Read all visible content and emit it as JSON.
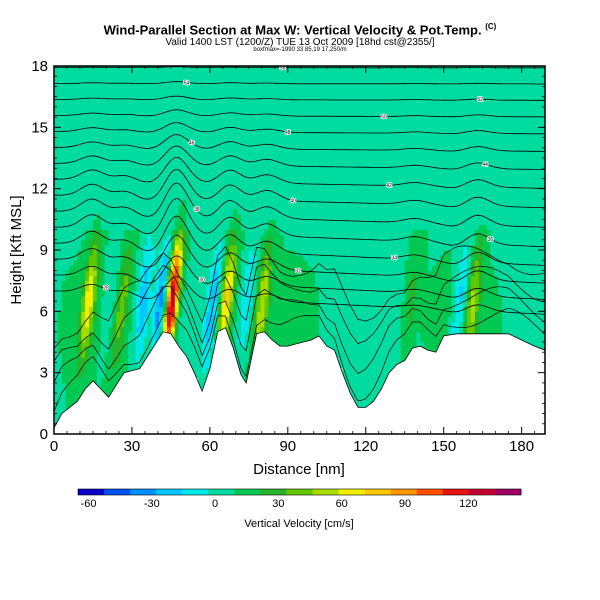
{
  "chart_data": {
    "type": "heatmap",
    "title": "Wind-Parallel Section at Max W: Vertical Velocity & Pot.Temp.",
    "title_mark": "(C)",
    "subtitle": "Valid 1400 LST (1200/Z) TUE 13 Oct 2009 [18hd cst@2355/]",
    "subsubtitle": "boxfmax=-1990 33 85,19 17,250/m",
    "xlabel": "Distance [nm]",
    "ylabel": "Height [Kft MSL]",
    "xlim": [
      0,
      189
    ],
    "ylim": [
      0,
      18
    ],
    "xticks": [
      0,
      30,
      60,
      90,
      120,
      150,
      180
    ],
    "yticks": [
      0,
      3,
      6,
      9,
      12,
      15,
      18
    ],
    "colorbar": {
      "label": "Vertical Velocity [cm/s]",
      "ticks": [
        -60,
        -30,
        0,
        30,
        60,
        90,
        120
      ],
      "range": [
        -65,
        145
      ],
      "colors": [
        "#0a00c8",
        "#0050f0",
        "#0090ff",
        "#00c8ff",
        "#00e8e8",
        "#00dca0",
        "#00c850",
        "#28b428",
        "#64c800",
        "#a8dc00",
        "#f0f000",
        "#ffc800",
        "#ff9600",
        "#ff5000",
        "#e61414",
        "#c80032",
        "#a00064"
      ]
    },
    "terrain": [
      [
        0,
        0.3
      ],
      [
        3,
        1
      ],
      [
        6,
        1.3
      ],
      [
        9,
        1.6
      ],
      [
        12,
        2.2
      ],
      [
        15,
        2.6
      ],
      [
        18,
        2.2
      ],
      [
        21,
        1.8
      ],
      [
        24,
        2.4
      ],
      [
        27,
        3.0
      ],
      [
        30,
        3.1
      ],
      [
        33,
        3.2
      ],
      [
        36,
        3.8
      ],
      [
        39,
        4.4
      ],
      [
        42,
        5.0
      ],
      [
        45,
        4.9
      ],
      [
        48,
        4.3
      ],
      [
        51,
        3.8
      ],
      [
        54,
        3.0
      ],
      [
        57,
        2.1
      ],
      [
        60,
        3.2
      ],
      [
        63,
        5.0
      ],
      [
        66,
        5.2
      ],
      [
        69,
        4.2
      ],
      [
        72,
        2.9
      ],
      [
        74,
        2.5
      ],
      [
        76,
        3.7
      ],
      [
        78,
        4.9
      ],
      [
        81,
        5.0
      ],
      [
        84,
        4.6
      ],
      [
        87,
        4.3
      ],
      [
        90,
        4.3
      ],
      [
        93,
        4.4
      ],
      [
        96,
        4.5
      ],
      [
        99,
        4.6
      ],
      [
        102,
        4.8
      ],
      [
        105,
        4.3
      ],
      [
        108,
        4.1
      ],
      [
        111,
        3.0
      ],
      [
        114,
        2.0
      ],
      [
        117,
        1.3
      ],
      [
        120,
        1.3
      ],
      [
        123,
        1.6
      ],
      [
        126,
        2.2
      ],
      [
        129,
        3.0
      ],
      [
        132,
        3.4
      ],
      [
        135,
        3.6
      ],
      [
        138,
        4.2
      ],
      [
        141,
        4.3
      ],
      [
        144,
        4.1
      ],
      [
        147,
        4.0
      ],
      [
        150,
        4.8
      ],
      [
        155,
        4.9
      ],
      [
        160,
        4.9
      ],
      [
        165,
        4.9
      ],
      [
        170,
        4.9
      ],
      [
        175,
        4.9
      ],
      [
        180,
        4.6
      ],
      [
        185,
        4.3
      ],
      [
        189,
        4.1
      ]
    ],
    "updraft_columns": [
      {
        "x": 12,
        "peak": 55
      },
      {
        "x": 44,
        "peak": 130
      },
      {
        "x": 65,
        "peak": 70
      },
      {
        "x": 79,
        "peak": 45
      },
      {
        "x": 160,
        "peak": 40
      },
      {
        "x": 136,
        "peak": 18
      },
      {
        "x": 25,
        "peak": 30
      }
    ],
    "downdraft_columns": [
      {
        "x": 40,
        "peak": -45
      },
      {
        "x": 33,
        "peak": -35
      },
      {
        "x": 60,
        "peak": -30
      },
      {
        "x": 73,
        "peak": -25
      },
      {
        "x": 155,
        "peak": -30
      },
      {
        "x": 20,
        "peak": -15
      }
    ],
    "isentrope_labels": [
      "28",
      "30",
      "32",
      "34",
      "36",
      "38",
      "40",
      "42",
      "44",
      "46",
      "48",
      "50",
      "52",
      "54",
      "56",
      "58"
    ]
  }
}
